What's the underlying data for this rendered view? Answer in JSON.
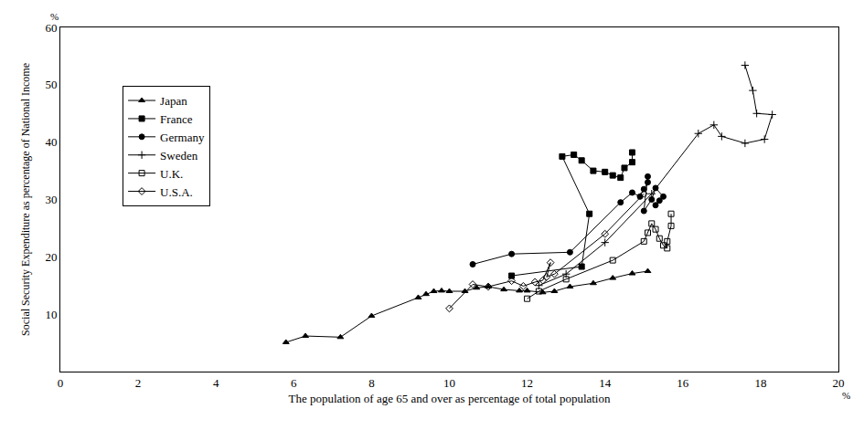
{
  "chart_data": {
    "type": "scatter",
    "x_label": "The population of age 65 and over as percentage of total population",
    "y_label": "Social Security Expenditure as percentage of National Income",
    "x_unit": "%",
    "y_unit": "%",
    "xlim": [
      0,
      20
    ],
    "xticks": [
      0,
      2,
      4,
      6,
      8,
      10,
      12,
      14,
      16,
      18,
      20
    ],
    "ylim": [
      0,
      60
    ],
    "yticks": [
      10,
      20,
      30,
      40,
      50,
      60
    ],
    "grid": false,
    "legend": "upper left",
    "series": [
      {
        "name": "Japan",
        "color": "#000000",
        "marker": "triangle-up",
        "line_style": "solid",
        "x": [
          5.8,
          6.3,
          7.2,
          8.0,
          9.2,
          9.4,
          9.6,
          9.8,
          10.0,
          10.4,
          10.7,
          11.0,
          11.4,
          11.8,
          12.0,
          12.4,
          12.7,
          13.1,
          13.7,
          14.2,
          14.7,
          15.1
        ],
        "values": [
          5.1,
          6.2,
          6.0,
          9.7,
          12.9,
          13.5,
          14.0,
          14.1,
          14.0,
          14.0,
          14.6,
          14.8,
          14.3,
          14.1,
          14.1,
          13.8,
          14.0,
          14.8,
          15.4,
          16.3,
          17.1,
          17.5
        ]
      },
      {
        "name": "France",
        "color": "#000000",
        "marker": "square",
        "line_style": "solid",
        "x": [
          11.6,
          13.4,
          13.6,
          12.9,
          13.2,
          13.4,
          13.7,
          14.0,
          14.2,
          14.4,
          14.5,
          14.7,
          14.7
        ],
        "values": [
          16.7,
          18.3,
          27.5,
          37.5,
          37.8,
          36.8,
          35.0,
          34.8,
          34.2,
          33.8,
          35.5,
          36.5,
          38.2
        ]
      },
      {
        "name": "Germany",
        "color": "#000000",
        "marker": "circle",
        "line_style": "solid",
        "x": [
          10.6,
          11.6,
          13.1,
          14.4,
          14.7,
          14.9,
          15.0,
          15.1,
          15.1,
          15.0,
          15.2,
          15.3,
          15.5,
          15.4,
          15.3
        ],
        "values": [
          18.7,
          20.5,
          20.8,
          29.5,
          31.2,
          30.5,
          31.8,
          33.0,
          34.0,
          28.0,
          30.0,
          32.0,
          30.5,
          29.8,
          29.0
        ]
      },
      {
        "name": "Sweden",
        "color": "#000000",
        "marker": "cross-thin-open",
        "line_style": "solid",
        "x": [
          12.3,
          13.0,
          14.0,
          15.2,
          16.4,
          16.8,
          17.0,
          17.6,
          18.1,
          18.3,
          17.9,
          17.8,
          17.6
        ],
        "values": [
          15.0,
          17.0,
          22.5,
          31.0,
          41.5,
          43.0,
          41.0,
          39.8,
          40.5,
          44.8,
          45.0,
          49.0,
          53.4
        ]
      },
      {
        "name": "U.K.",
        "color": "#000000",
        "marker": "square-open",
        "line_style": "solid",
        "x": [
          12.0,
          12.3,
          13.0,
          14.2,
          15.0,
          15.1,
          15.2,
          15.3,
          15.4,
          15.5,
          15.6,
          15.6,
          15.7,
          15.7
        ],
        "values": [
          12.7,
          14.0,
          16.1,
          19.4,
          22.7,
          24.2,
          25.8,
          24.8,
          23.2,
          22.0,
          21.5,
          22.7,
          25.4,
          27.5
        ]
      },
      {
        "name": "U.S.A.",
        "color": "#000000",
        "marker": "diamond-open",
        "line_style": "solid",
        "x": [
          10.0,
          10.6,
          11.0,
          11.6,
          11.9,
          12.2,
          12.4,
          12.6,
          12.5,
          12.7,
          14.0,
          15.0
        ],
        "values": [
          11.0,
          15.2,
          14.8,
          15.8,
          14.9,
          15.6,
          15.9,
          19.0,
          16.5,
          17.0,
          24.0,
          31.0
        ]
      }
    ]
  }
}
